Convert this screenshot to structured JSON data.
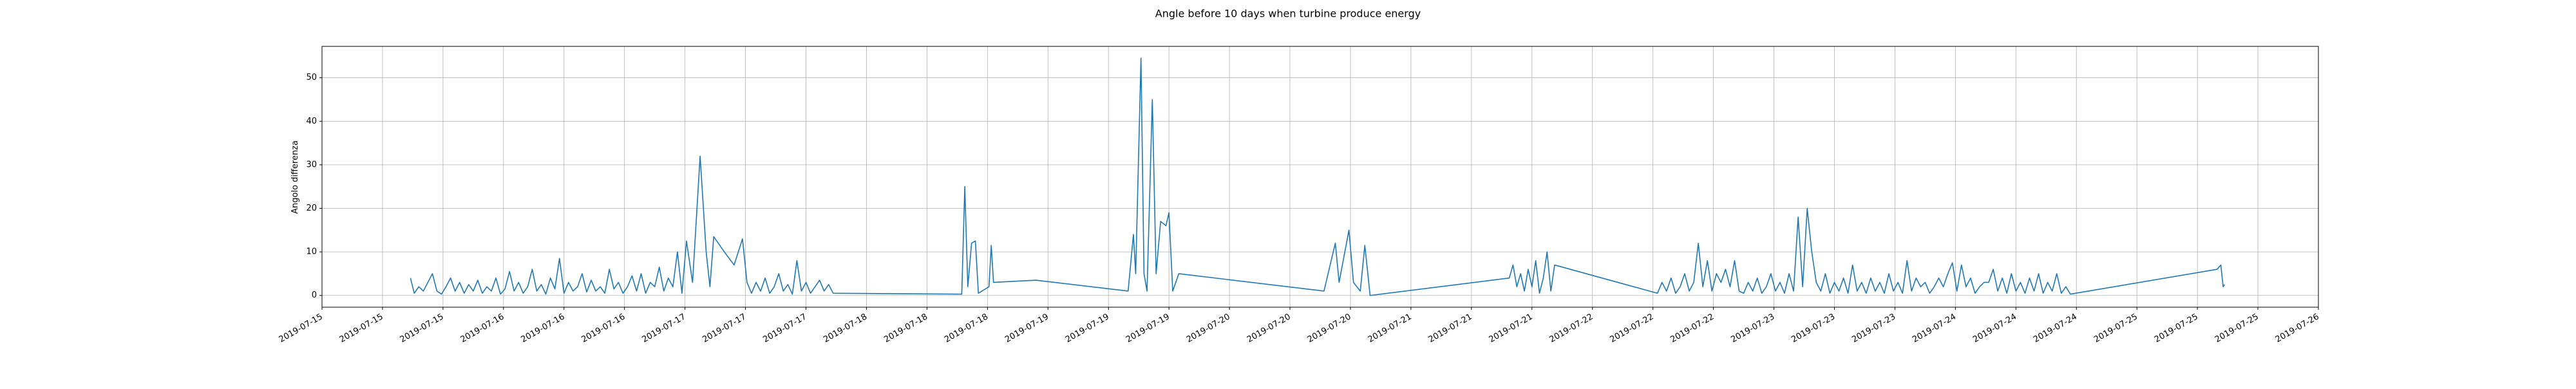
{
  "chart_data": {
    "type": "line",
    "title": "Angle before 10 days when turbine produce energy",
    "y_label": "Angolo differenza",
    "grid": true,
    "xlim": [
      0,
      264
    ],
    "ylim": [
      -2.7,
      57.2
    ],
    "yticks": [
      0,
      10,
      20,
      30,
      40,
      50
    ],
    "xticks": [
      {
        "value": 0,
        "label": "2019-07-15"
      },
      {
        "value": 8,
        "label": "2019-07-15"
      },
      {
        "value": 16,
        "label": "2019-07-15"
      },
      {
        "value": 24,
        "label": "2019-07-16"
      },
      {
        "value": 32,
        "label": "2019-07-16"
      },
      {
        "value": 40,
        "label": "2019-07-16"
      },
      {
        "value": 48,
        "label": "2019-07-17"
      },
      {
        "value": 56,
        "label": "2019-07-17"
      },
      {
        "value": 64,
        "label": "2019-07-17"
      },
      {
        "value": 72,
        "label": "2019-07-18"
      },
      {
        "value": 80,
        "label": "2019-07-18"
      },
      {
        "value": 88,
        "label": "2019-07-18"
      },
      {
        "value": 96,
        "label": "2019-07-19"
      },
      {
        "value": 104,
        "label": "2019-07-19"
      },
      {
        "value": 112,
        "label": "2019-07-19"
      },
      {
        "value": 120,
        "label": "2019-07-20"
      },
      {
        "value": 128,
        "label": "2019-07-20"
      },
      {
        "value": 136,
        "label": "2019-07-20"
      },
      {
        "value": 144,
        "label": "2019-07-21"
      },
      {
        "value": 152,
        "label": "2019-07-21"
      },
      {
        "value": 160,
        "label": "2019-07-21"
      },
      {
        "value": 168,
        "label": "2019-07-22"
      },
      {
        "value": 176,
        "label": "2019-07-22"
      },
      {
        "value": 184,
        "label": "2019-07-22"
      },
      {
        "value": 192,
        "label": "2019-07-23"
      },
      {
        "value": 200,
        "label": "2019-07-23"
      },
      {
        "value": 208,
        "label": "2019-07-23"
      },
      {
        "value": 216,
        "label": "2019-07-24"
      },
      {
        "value": 224,
        "label": "2019-07-24"
      },
      {
        "value": 232,
        "label": "2019-07-24"
      },
      {
        "value": 240,
        "label": "2019-07-25"
      },
      {
        "value": 248,
        "label": "2019-07-25"
      },
      {
        "value": 256,
        "label": "2019-07-25"
      },
      {
        "value": 264,
        "label": "2019-07-26"
      }
    ],
    "series": [
      {
        "color": "#1f77b4",
        "x": [
          11.7,
          12.2,
          12.8,
          13.4,
          14.0,
          14.6,
          15.2,
          15.8,
          16.4,
          17.0,
          17.6,
          18.2,
          18.8,
          19.4,
          20.0,
          20.6,
          21.2,
          21.8,
          22.4,
          23.0,
          23.6,
          24.2,
          24.8,
          25.4,
          26.0,
          26.6,
          27.2,
          27.8,
          28.4,
          29.0,
          29.6,
          30.2,
          30.8,
          31.4,
          32.0,
          32.6,
          33.2,
          33.8,
          34.4,
          35.0,
          35.6,
          36.2,
          36.8,
          37.4,
          38.0,
          38.6,
          39.2,
          39.8,
          40.4,
          41.0,
          41.6,
          42.2,
          42.8,
          43.4,
          44.0,
          44.6,
          45.2,
          45.8,
          46.4,
          47.0,
          47.6,
          48.2,
          49.0,
          50.0,
          50.8,
          51.3,
          51.8,
          53.2,
          54.5,
          55.6,
          56.2,
          56.8,
          57.4,
          58.0,
          58.6,
          59.2,
          59.8,
          60.4,
          61.0,
          61.6,
          62.2,
          62.8,
          63.4,
          64.0,
          64.6,
          65.2,
          65.8,
          66.4,
          67.0,
          67.6,
          84.6,
          85.0,
          85.4,
          85.9,
          86.4,
          86.8,
          88.2,
          88.5,
          88.8,
          94.4,
          106.6,
          107.3,
          107.6,
          108.3,
          108.7,
          109.1,
          109.8,
          110.3,
          110.9,
          111.6,
          112.0,
          112.5,
          113.3,
          132.5,
          134.0,
          134.5,
          135.8,
          136.4,
          137.3,
          137.9,
          138.6,
          157.0,
          157.5,
          158.0,
          158.5,
          159.0,
          159.5,
          160.0,
          160.5,
          161.0,
          161.5,
          162.0,
          162.5,
          163.0,
          176.6,
          177.2,
          177.8,
          178.4,
          179.0,
          179.6,
          180.2,
          180.8,
          181.4,
          182.0,
          182.6,
          183.2,
          183.8,
          184.4,
          185.0,
          185.6,
          186.2,
          186.8,
          187.4,
          188.0,
          188.6,
          189.2,
          189.8,
          190.4,
          191.0,
          191.6,
          192.2,
          192.8,
          193.4,
          194.0,
          194.6,
          195.2,
          195.8,
          196.4,
          197.0,
          197.6,
          198.2,
          198.8,
          199.4,
          200.0,
          200.6,
          201.2,
          201.8,
          202.4,
          203.0,
          203.6,
          204.2,
          204.8,
          205.4,
          206.0,
          206.6,
          207.2,
          207.8,
          208.4,
          209.0,
          209.6,
          210.2,
          210.8,
          211.4,
          212.0,
          212.6,
          213.2,
          213.8,
          214.4,
          215.0,
          215.6,
          216.2,
          216.8,
          217.4,
          218.0,
          218.6,
          219.2,
          219.8,
          220.4,
          221.0,
          221.6,
          222.2,
          222.8,
          223.4,
          224.0,
          224.6,
          225.2,
          225.8,
          226.4,
          227.0,
          227.6,
          228.2,
          228.8,
          229.4,
          230.0,
          230.6,
          231.2,
          250.6,
          251.1,
          251.4,
          251.6
        ],
        "values": [
          4,
          0.5,
          2,
          1,
          3,
          5,
          1,
          0.3,
          2,
          4,
          1,
          3,
          0.5,
          2.5,
          1,
          3.5,
          0.5,
          2,
          1,
          4,
          0.3,
          1.5,
          5.5,
          1,
          3,
          0.5,
          2,
          6,
          1,
          2.5,
          0.3,
          4,
          1.5,
          8.5,
          0.5,
          3,
          1,
          2,
          5,
          0.8,
          3.5,
          1,
          2,
          0.5,
          6,
          1.5,
          3,
          0.5,
          2,
          4.5,
          1,
          5,
          0.5,
          3,
          2,
          6.5,
          1,
          4,
          2,
          10,
          0.5,
          12.5,
          3,
          32,
          10,
          2,
          13.5,
          10,
          7,
          13,
          3,
          0.5,
          3,
          1,
          4,
          0.5,
          2,
          5,
          1,
          2.5,
          0.3,
          8,
          1,
          3,
          0.5,
          2,
          3.5,
          1,
          2.5,
          0.5,
          0.3,
          25,
          2,
          12,
          12.5,
          0.5,
          2,
          11.5,
          3,
          3.5,
          1,
          14,
          5,
          54.5,
          5,
          1,
          45,
          5,
          17,
          16,
          19,
          1,
          5,
          1,
          12,
          3,
          15,
          3,
          1,
          11.5,
          0,
          4,
          7,
          2,
          5,
          1,
          6,
          2,
          8,
          0.5,
          4,
          10,
          1,
          7,
          0.5,
          3,
          1,
          4,
          0.5,
          2,
          5,
          1,
          3,
          12,
          2,
          8,
          1,
          5,
          3,
          6,
          2,
          8,
          1,
          0.5,
          3,
          1,
          4,
          0.5,
          2,
          5,
          1,
          3,
          0.5,
          5,
          1,
          18,
          2,
          20,
          10,
          3,
          1,
          5,
          0.5,
          3,
          1,
          4,
          0.5,
          7,
          1,
          3,
          0.5,
          4,
          1,
          3,
          0.5,
          5,
          1,
          3,
          0.5,
          8,
          1,
          4,
          2,
          3,
          0.5,
          2,
          4,
          2,
          5,
          7.5,
          1,
          7,
          2,
          4,
          0.5,
          2,
          3,
          3,
          6,
          1,
          4,
          0.5,
          5,
          1,
          3,
          0.5,
          4,
          1,
          5,
          0.5,
          3,
          1,
          5,
          0.5,
          2,
          0.3,
          6,
          7,
          2,
          2.5
        ]
      }
    ]
  }
}
